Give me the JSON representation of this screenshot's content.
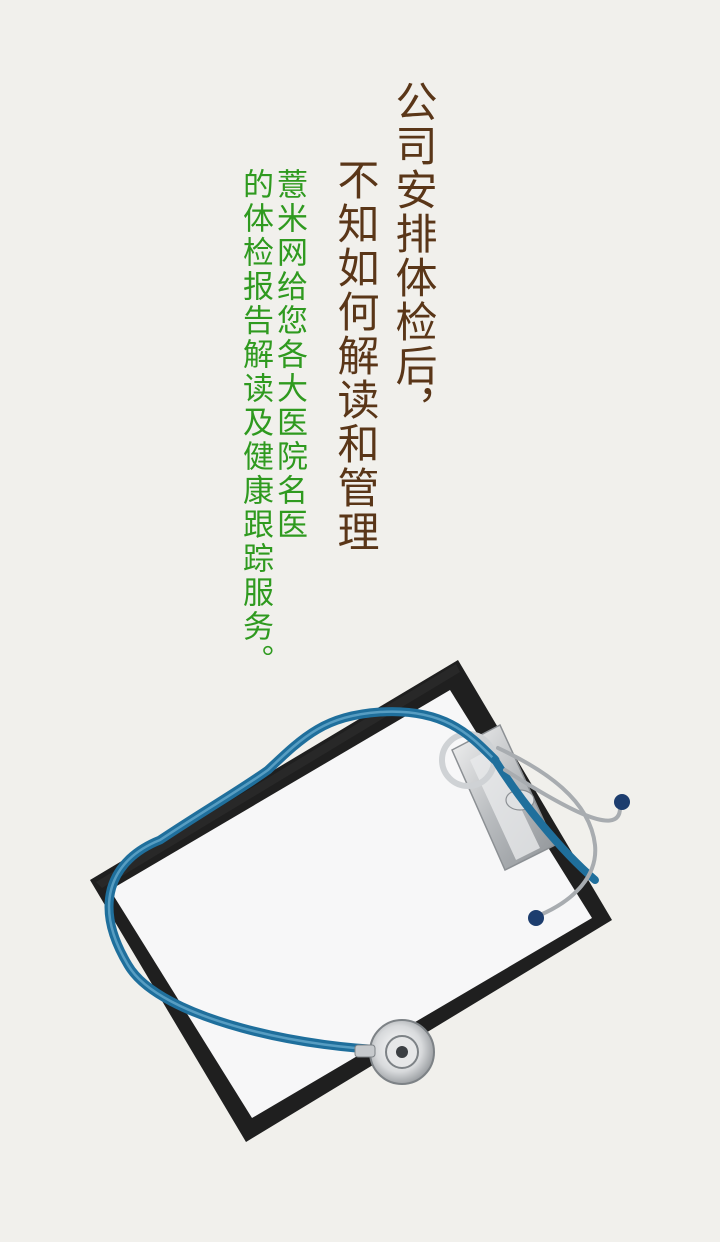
{
  "splash": {
    "headline_line_1": "公司安排体检后，",
    "headline_line_2": "不知如何解读和管理",
    "subtext_line_1": "薏米网给您各大医院名医",
    "subtext_line_2": "的体检报告解读及健康跟踪服务。"
  },
  "colors": {
    "background": "#f1f0ec",
    "headline": "#5a3618",
    "subtext": "#2f9a1f",
    "clipboard_border": "#1e1e1e",
    "tubing": "#1f6f9c"
  },
  "illustration": {
    "clipboard_icon": "clipboard-icon",
    "stethoscope_icon": "stethoscope-icon"
  }
}
